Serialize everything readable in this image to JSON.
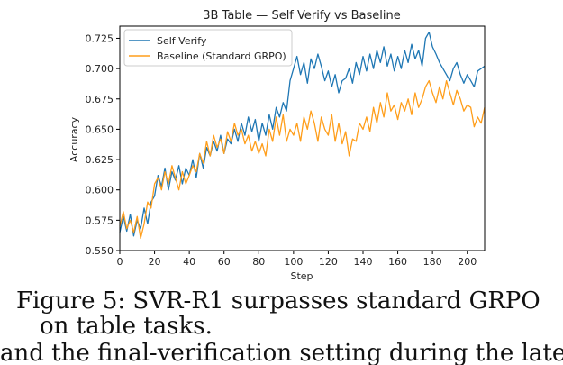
{
  "chart_data": {
    "type": "line",
    "title": "3B Table — Self Verify vs Baseline",
    "xlabel": "Step",
    "ylabel": "Accuracy",
    "xlim": [
      0,
      210
    ],
    "ylim": [
      0.55,
      0.735
    ],
    "xticks": [
      0,
      20,
      40,
      60,
      80,
      100,
      120,
      140,
      160,
      180,
      200
    ],
    "yticks": [
      0.55,
      0.575,
      0.6,
      0.625,
      0.65,
      0.675,
      0.7,
      0.725
    ],
    "ytick_labels": [
      "0.550",
      "0.575",
      "0.600",
      "0.625",
      "0.650",
      "0.675",
      "0.700",
      "0.725"
    ],
    "grid": false,
    "legend_position": "top-left",
    "series": [
      {
        "name": "Self Verify",
        "color": "#1f77b4",
        "x": [
          0,
          2,
          4,
          6,
          8,
          10,
          12,
          14,
          16,
          18,
          20,
          22,
          24,
          26,
          28,
          30,
          32,
          34,
          36,
          38,
          40,
          42,
          44,
          46,
          48,
          50,
          52,
          54,
          56,
          58,
          60,
          62,
          64,
          66,
          68,
          70,
          72,
          74,
          76,
          78,
          80,
          82,
          84,
          86,
          88,
          90,
          92,
          94,
          96,
          98,
          100,
          102,
          104,
          106,
          108,
          110,
          112,
          114,
          116,
          118,
          120,
          122,
          124,
          126,
          128,
          130,
          132,
          134,
          136,
          138,
          140,
          142,
          144,
          146,
          148,
          150,
          152,
          154,
          156,
          158,
          160,
          162,
          164,
          166,
          168,
          170,
          172,
          174,
          176,
          178,
          180,
          182,
          184,
          186,
          188,
          190,
          192,
          194,
          196,
          198,
          200,
          202,
          204,
          206,
          208,
          210
        ],
        "values": [
          0.565,
          0.578,
          0.566,
          0.58,
          0.562,
          0.575,
          0.568,
          0.585,
          0.572,
          0.59,
          0.595,
          0.612,
          0.603,
          0.618,
          0.6,
          0.615,
          0.608,
          0.62,
          0.605,
          0.618,
          0.612,
          0.625,
          0.61,
          0.63,
          0.618,
          0.635,
          0.628,
          0.64,
          0.632,
          0.645,
          0.63,
          0.642,
          0.638,
          0.65,
          0.64,
          0.655,
          0.645,
          0.66,
          0.648,
          0.658,
          0.64,
          0.655,
          0.645,
          0.662,
          0.65,
          0.668,
          0.66,
          0.672,
          0.665,
          0.69,
          0.7,
          0.71,
          0.695,
          0.705,
          0.688,
          0.708,
          0.7,
          0.712,
          0.702,
          0.69,
          0.698,
          0.685,
          0.695,
          0.68,
          0.69,
          0.692,
          0.7,
          0.688,
          0.705,
          0.695,
          0.71,
          0.698,
          0.712,
          0.7,
          0.715,
          0.705,
          0.718,
          0.702,
          0.712,
          0.698,
          0.71,
          0.7,
          0.715,
          0.705,
          0.72,
          0.708,
          0.715,
          0.702,
          0.725,
          0.73,
          0.718,
          0.712,
          0.705,
          0.7,
          0.695,
          0.69,
          0.7,
          0.705,
          0.695,
          0.688,
          0.695,
          0.69,
          0.685,
          0.698,
          0.7,
          0.702
        ]
      },
      {
        "name": "Baseline (Standard GRPO)",
        "color": "#ff9e1b",
        "x": [
          0,
          2,
          4,
          6,
          8,
          10,
          12,
          14,
          16,
          18,
          20,
          22,
          24,
          26,
          28,
          30,
          32,
          34,
          36,
          38,
          40,
          42,
          44,
          46,
          48,
          50,
          52,
          54,
          56,
          58,
          60,
          62,
          64,
          66,
          68,
          70,
          72,
          74,
          76,
          78,
          80,
          82,
          84,
          86,
          88,
          90,
          92,
          94,
          96,
          98,
          100,
          102,
          104,
          106,
          108,
          110,
          112,
          114,
          116,
          118,
          120,
          122,
          124,
          126,
          128,
          130,
          132,
          134,
          136,
          138,
          140,
          142,
          144,
          146,
          148,
          150,
          152,
          154,
          156,
          158,
          160,
          162,
          164,
          166,
          168,
          170,
          172,
          174,
          176,
          178,
          180,
          182,
          184,
          186,
          188,
          190,
          192,
          194,
          196,
          198,
          200,
          202,
          204,
          206,
          208,
          210
        ],
        "values": [
          0.57,
          0.582,
          0.568,
          0.575,
          0.565,
          0.578,
          0.56,
          0.572,
          0.59,
          0.585,
          0.605,
          0.61,
          0.6,
          0.615,
          0.605,
          0.62,
          0.61,
          0.6,
          0.615,
          0.605,
          0.612,
          0.62,
          0.615,
          0.63,
          0.622,
          0.64,
          0.628,
          0.645,
          0.635,
          0.642,
          0.63,
          0.648,
          0.64,
          0.655,
          0.645,
          0.65,
          0.638,
          0.645,
          0.632,
          0.64,
          0.63,
          0.638,
          0.628,
          0.65,
          0.64,
          0.66,
          0.645,
          0.662,
          0.64,
          0.65,
          0.645,
          0.655,
          0.64,
          0.66,
          0.65,
          0.665,
          0.655,
          0.64,
          0.66,
          0.65,
          0.645,
          0.662,
          0.64,
          0.655,
          0.638,
          0.648,
          0.628,
          0.642,
          0.64,
          0.655,
          0.65,
          0.66,
          0.648,
          0.668,
          0.655,
          0.672,
          0.66,
          0.68,
          0.665,
          0.67,
          0.658,
          0.672,
          0.665,
          0.675,
          0.662,
          0.68,
          0.668,
          0.675,
          0.685,
          0.69,
          0.68,
          0.672,
          0.685,
          0.675,
          0.69,
          0.68,
          0.67,
          0.682,
          0.675,
          0.665,
          0.67,
          0.668,
          0.652,
          0.66,
          0.655,
          0.668
        ]
      }
    ]
  },
  "caption": {
    "line1": "Figure 5: SVR-R1 surpasses standard GRPO",
    "line2": "on table tasks."
  },
  "body_text": "and the final-verification setting during the later"
}
